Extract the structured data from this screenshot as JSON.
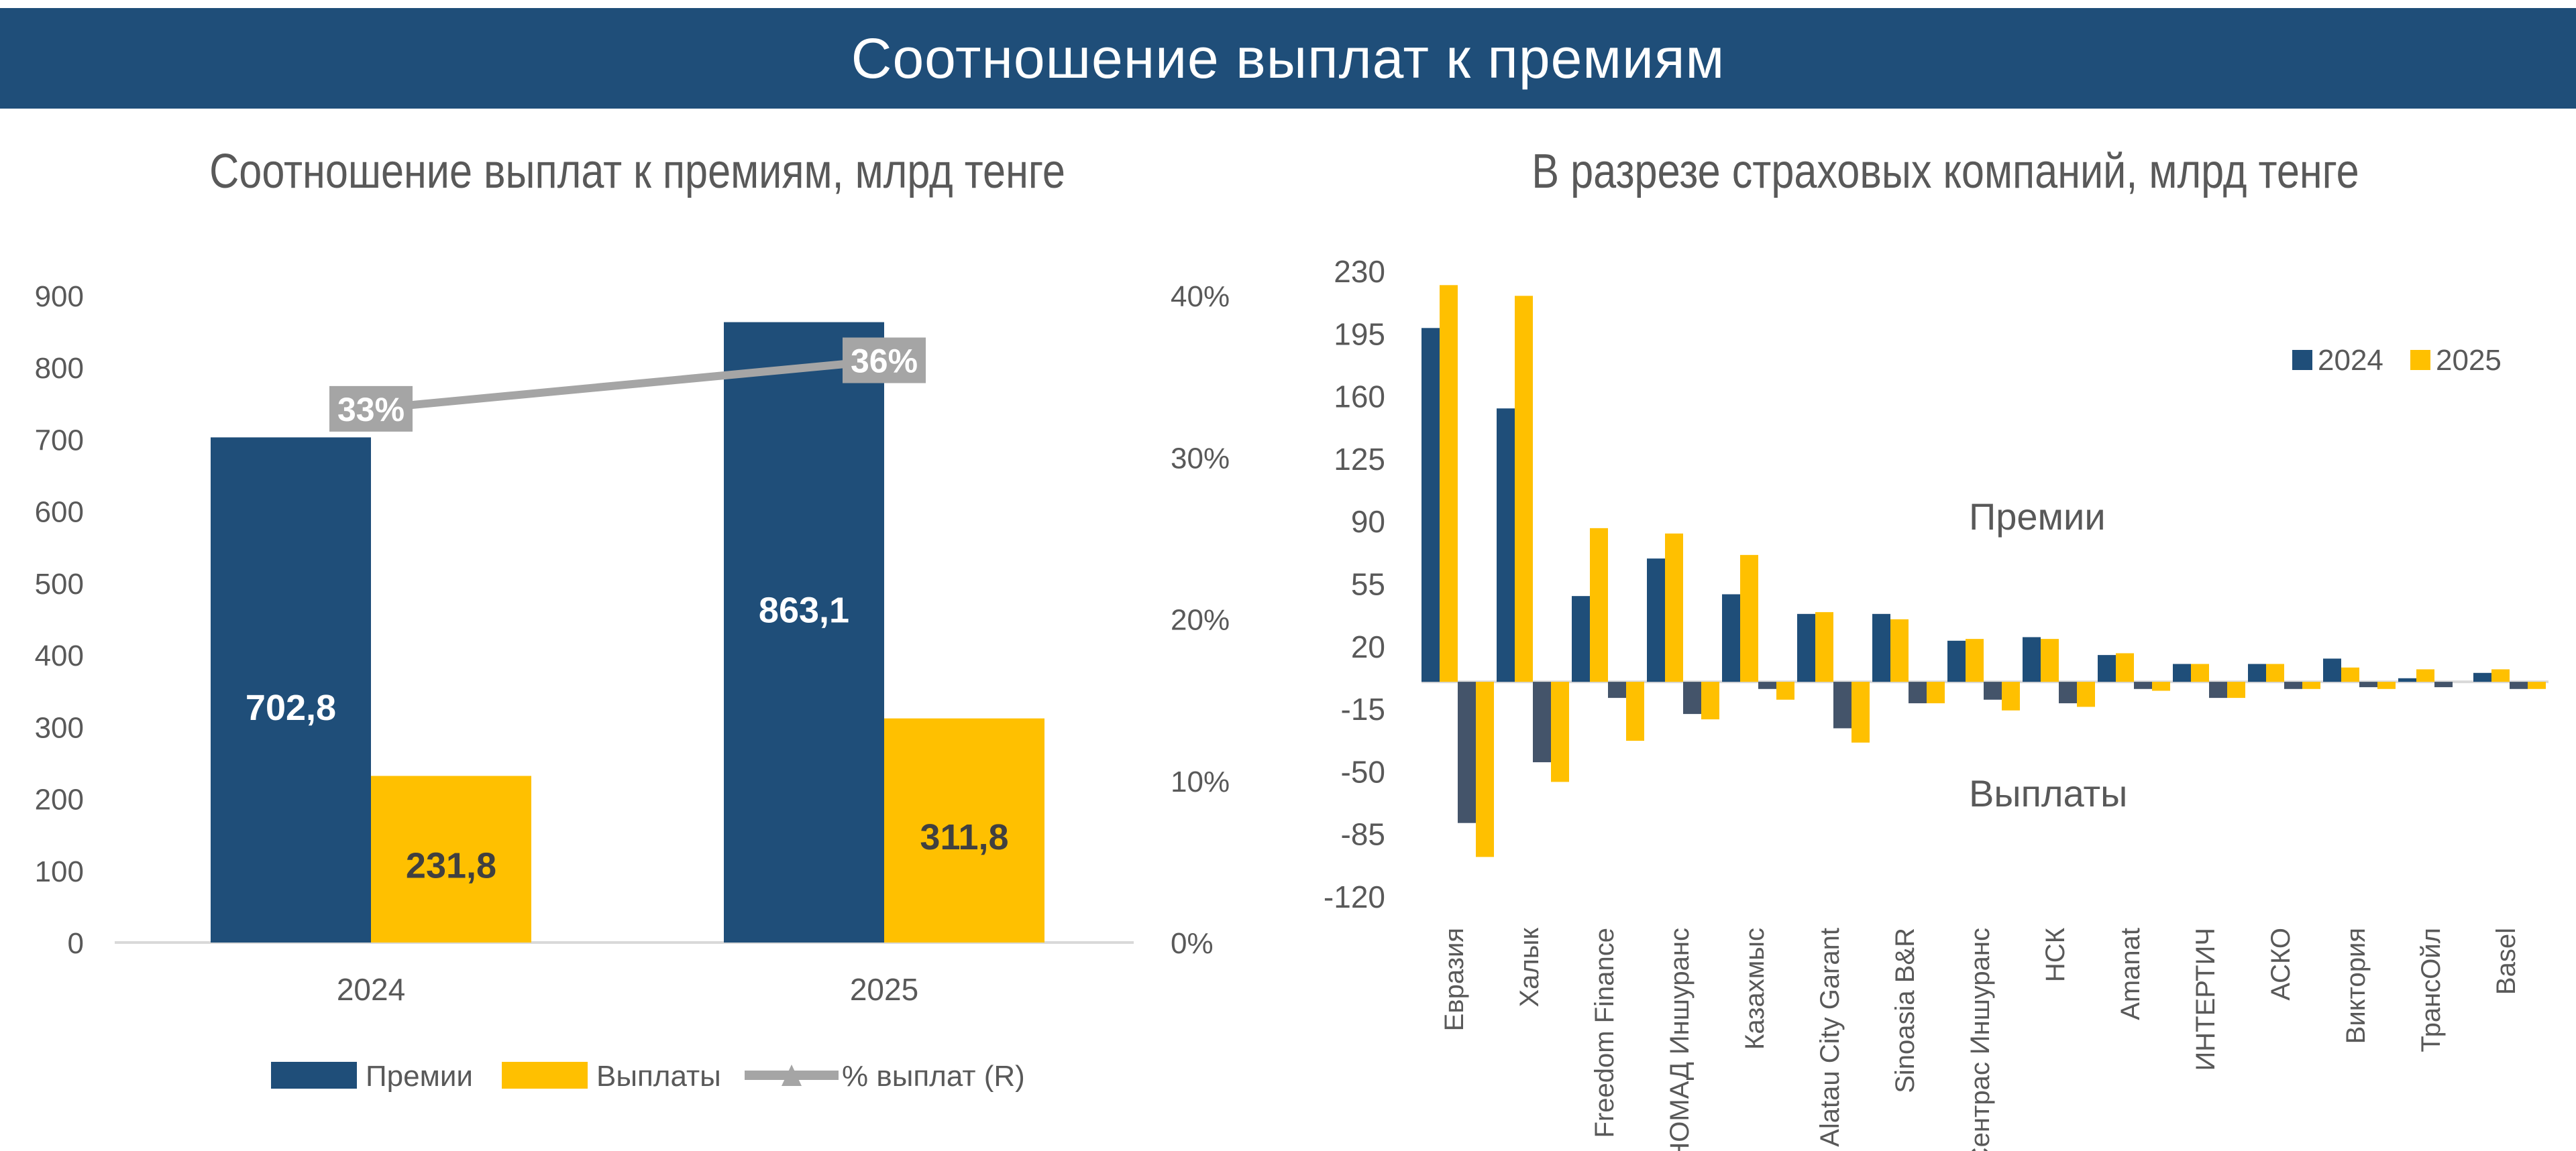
{
  "header": {
    "title": "Соотношение выплат к премиям"
  },
  "colors": {
    "premium": "#1F4E79",
    "payout_2024": "#44546A",
    "payout_2025": "#FFC000",
    "line": "#A5A5A5",
    "header": "#1F4E79"
  },
  "chart_data": [
    {
      "type": "bar",
      "title": "Соотношение выплат к премиям, млрд тенге",
      "categories": [
        "2024",
        "2025"
      ],
      "series": [
        {
          "name": "Премии",
          "values": [
            702.8,
            863.1
          ],
          "labels": [
            "702,8",
            "863,1"
          ]
        },
        {
          "name": "Выплаты",
          "values": [
            231.8,
            311.8
          ],
          "labels": [
            "231,8",
            "311,8"
          ]
        },
        {
          "name": "% выплат (R)",
          "type": "line",
          "axis": "right",
          "values": [
            33,
            36
          ],
          "labels": [
            "33%",
            "36%"
          ]
        }
      ],
      "ylim": [
        0,
        900
      ],
      "yticks": [
        "0",
        "100",
        "200",
        "300",
        "400",
        "500",
        "600",
        "700",
        "800",
        "900"
      ],
      "y2lim": [
        0,
        40
      ],
      "y2ticks": [
        "0%",
        "10%",
        "20%",
        "30%",
        "40%"
      ],
      "legend": "bottom"
    },
    {
      "type": "bar",
      "title": "В разрезе страховых компаний, млрд тенге",
      "categories": [
        "Евразия",
        "Халык",
        "Freedom Finance",
        "НОМАД Иншуранс",
        "Казахмыс",
        "Alatau City Garant",
        "Sinoasia B&R",
        "Сентрас Иншуранс",
        "НСК",
        "Amanat",
        "ИНТЕРТИЧ",
        "АСКО",
        "Виктория",
        "ТрансОйл",
        "Basel"
      ],
      "series": [
        {
          "name": "2024",
          "group": "Премии",
          "values": [
            198,
            153,
            48,
            69,
            49,
            38,
            38,
            23,
            25,
            15,
            10,
            10,
            13,
            2,
            5
          ]
        },
        {
          "name": "2025",
          "group": "Премии",
          "values": [
            222,
            216,
            86,
            83,
            71,
            39,
            35,
            24,
            24,
            16,
            10,
            10,
            8,
            7,
            7
          ]
        },
        {
          "name": "2024",
          "group": "Выплаты",
          "values": [
            -79,
            -45,
            -9,
            -18,
            -4,
            -26,
            -12,
            -10,
            -12,
            -4,
            -9,
            -4,
            -3,
            -3,
            -4
          ]
        },
        {
          "name": "2025",
          "group": "Выплаты",
          "values": [
            -98,
            -56,
            -33,
            -21,
            -10,
            -34,
            -12,
            -16,
            -14,
            -5,
            -9,
            -4,
            -4,
            0,
            -4
          ]
        }
      ],
      "ylim": [
        -120,
        230
      ],
      "yticks": [
        "230",
        "195",
        "160",
        "125",
        "90",
        "55",
        "20",
        "-15",
        "-50",
        "-85",
        "-120"
      ],
      "legend_items": [
        "2024",
        "2025"
      ],
      "legend": "top-right",
      "annotations": [
        "Премии",
        "Выплаты"
      ]
    }
  ]
}
